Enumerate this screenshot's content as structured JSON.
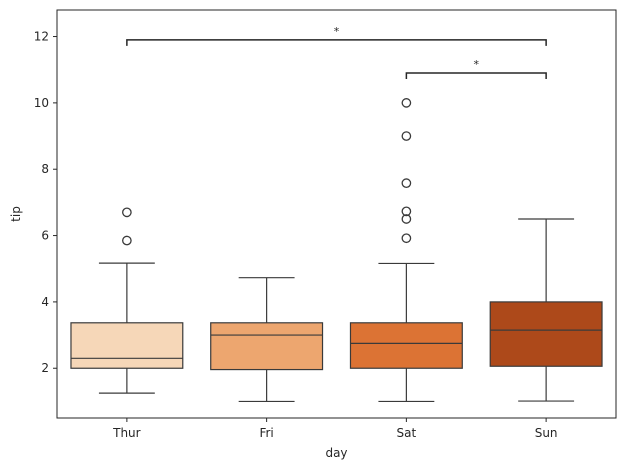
{
  "chart_data": {
    "type": "box",
    "xlabel": "day",
    "ylabel": "tip",
    "ylim": [
      0.5,
      12.8
    ],
    "yticks": [
      2,
      4,
      6,
      8,
      10,
      12
    ],
    "categories": [
      "Thur",
      "Fri",
      "Sat",
      "Sun"
    ],
    "colors": [
      "#f6d7b8",
      "#eda66f",
      "#dc7334",
      "#ad491a"
    ],
    "line_color": "#3a3a3a",
    "boxes": [
      {
        "category": "Thur",
        "whisker_low": 1.25,
        "q1": 2.0,
        "median": 2.3,
        "q3": 3.37,
        "whisker_high": 5.17,
        "outliers": [
          5.85,
          6.7
        ]
      },
      {
        "category": "Fri",
        "whisker_low": 1.0,
        "q1": 1.96,
        "median": 3.0,
        "q3": 3.37,
        "whisker_high": 4.73,
        "outliers": []
      },
      {
        "category": "Sat",
        "whisker_low": 1.0,
        "q1": 2.0,
        "median": 2.75,
        "q3": 3.37,
        "whisker_high": 5.16,
        "outliers": [
          5.92,
          6.5,
          6.73,
          7.58,
          9.0,
          10.0
        ]
      },
      {
        "category": "Sun",
        "whisker_low": 1.01,
        "q1": 2.06,
        "median": 3.15,
        "q3": 4.0,
        "whisker_high": 6.5,
        "outliers": []
      }
    ],
    "annotations": [
      {
        "from": "Thur",
        "to": "Sun",
        "y": 11.9,
        "label": "*"
      },
      {
        "from": "Sat",
        "to": "Sun",
        "y": 10.9,
        "label": "*"
      }
    ],
    "grid": false
  }
}
